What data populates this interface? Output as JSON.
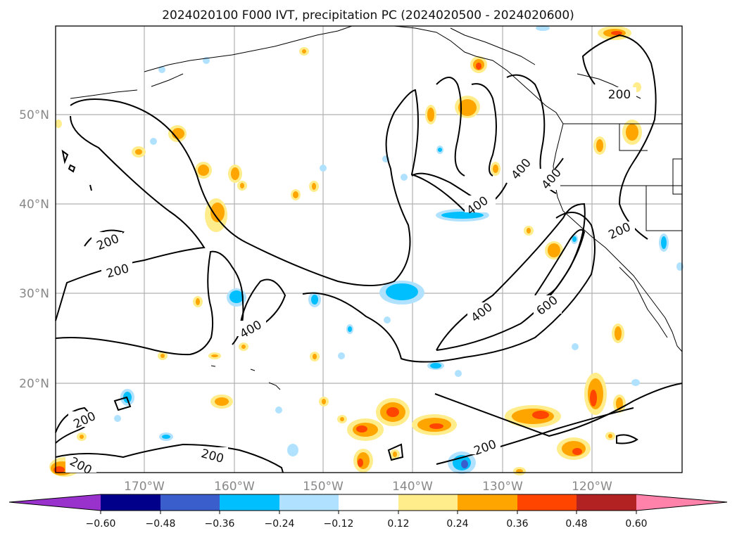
{
  "title": "2024020100 F000 IVT, precipitation PC (2024020500 - 2024020600)",
  "map": {
    "lon_labels": [
      "170°W",
      "160°W",
      "150°W",
      "140°W",
      "130°W",
      "120°W"
    ],
    "lat_labels": [
      "50°N",
      "40°N",
      "30°N",
      "20°N"
    ],
    "lon_range": [
      -180,
      -110
    ],
    "lat_range": [
      10,
      60
    ],
    "gridlines": true,
    "ivt_contour_labels": [
      "200",
      "200",
      "200",
      "200",
      "200",
      "200",
      "200",
      "400",
      "400",
      "400",
      "400",
      "600"
    ]
  },
  "colorbar": {
    "ticks": [
      "−0.60",
      "−0.48",
      "−0.36",
      "−0.24",
      "−0.12",
      "0.12",
      "0.24",
      "0.36",
      "0.48",
      "0.60"
    ],
    "colors": [
      "#9932cc",
      "#00008b",
      "#3a5fcd",
      "#00bfff",
      "#b0e2ff",
      "#ffffff",
      "#ffec8b",
      "#ffa500",
      "#ff4500",
      "#b22222",
      "#ff82ab"
    ],
    "extend": "both"
  }
}
